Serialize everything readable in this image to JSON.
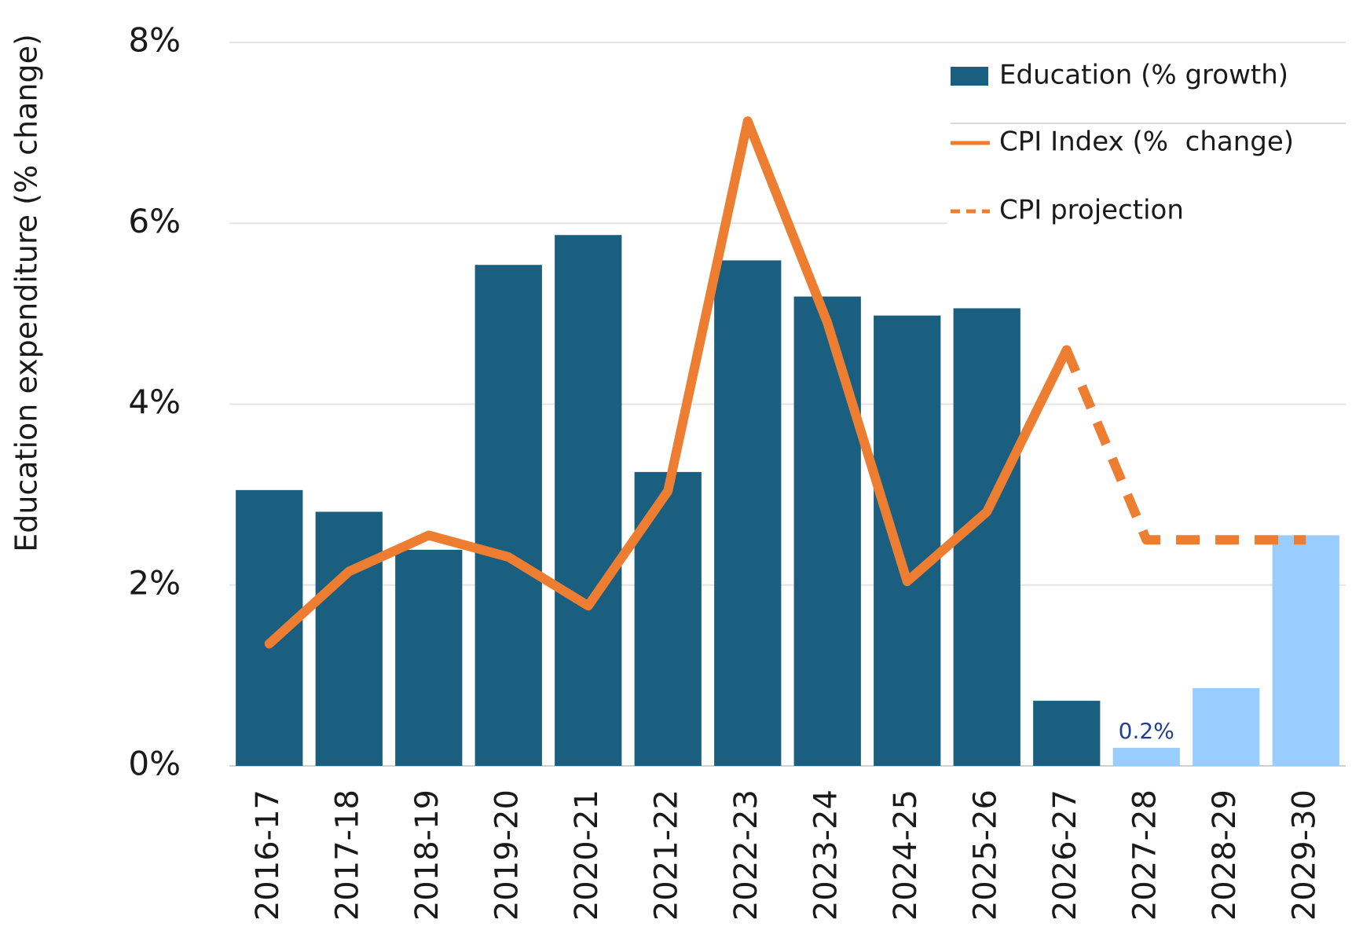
{
  "chart_data": {
    "type": "bar",
    "y_label": "Education expenditure (% change)",
    "categories": [
      "2016-17",
      "2017-18",
      "2018-19",
      "2019-20",
      "2020-21",
      "2021-22",
      "2022-23",
      "2023-24",
      "2024-25",
      "2025-26",
      "2026-27",
      "2027-28",
      "2028-29",
      "2029-30"
    ],
    "ylim": [
      0,
      8
    ],
    "yticks": [
      {
        "value": 0,
        "label": "0%"
      },
      {
        "value": 2,
        "label": "2%"
      },
      {
        "value": 4,
        "label": "4%"
      },
      {
        "value": 6,
        "label": "6%"
      },
      {
        "value": 8,
        "label": "8%"
      }
    ],
    "grid": true,
    "legend": "top-right",
    "series": [
      {
        "name": "Education (% growth)",
        "type": "bar",
        "color": "#1a5e80",
        "colors": [
          "#1a5e80",
          "#1a5e80",
          "#1a5e80",
          "#1a5e80",
          "#1a5e80",
          "#1a5e80",
          "#1a5e80",
          "#1a5e80",
          "#1a5e80",
          "#1a5e80",
          "#1a5e80",
          "#99ccff",
          "#99ccff",
          "#99ccff"
        ],
        "values": [
          3.05,
          2.81,
          2.39,
          5.54,
          5.87,
          3.25,
          5.59,
          5.19,
          4.98,
          5.06,
          0.72,
          0.2,
          0.86,
          2.55
        ],
        "value_labels": [
          null,
          null,
          null,
          null,
          null,
          null,
          null,
          null,
          null,
          null,
          null,
          "0.2%",
          null,
          null
        ],
        "value_label_color": "#1f3f8f"
      },
      {
        "name": "CPI Index (%  change)",
        "type": "line",
        "color": "#ed7d31",
        "linestyle": "solid",
        "values": [
          1.35,
          2.15,
          2.55,
          2.31,
          1.77,
          3.04,
          7.13,
          4.9,
          2.04,
          2.81,
          4.6,
          null,
          null,
          null
        ]
      },
      {
        "name": "CPI projection",
        "type": "line",
        "color": "#ed7d31",
        "linestyle": "dashed",
        "values": [
          null,
          null,
          null,
          null,
          null,
          null,
          null,
          null,
          null,
          null,
          4.6,
          2.5,
          2.5,
          2.5
        ]
      }
    ]
  }
}
